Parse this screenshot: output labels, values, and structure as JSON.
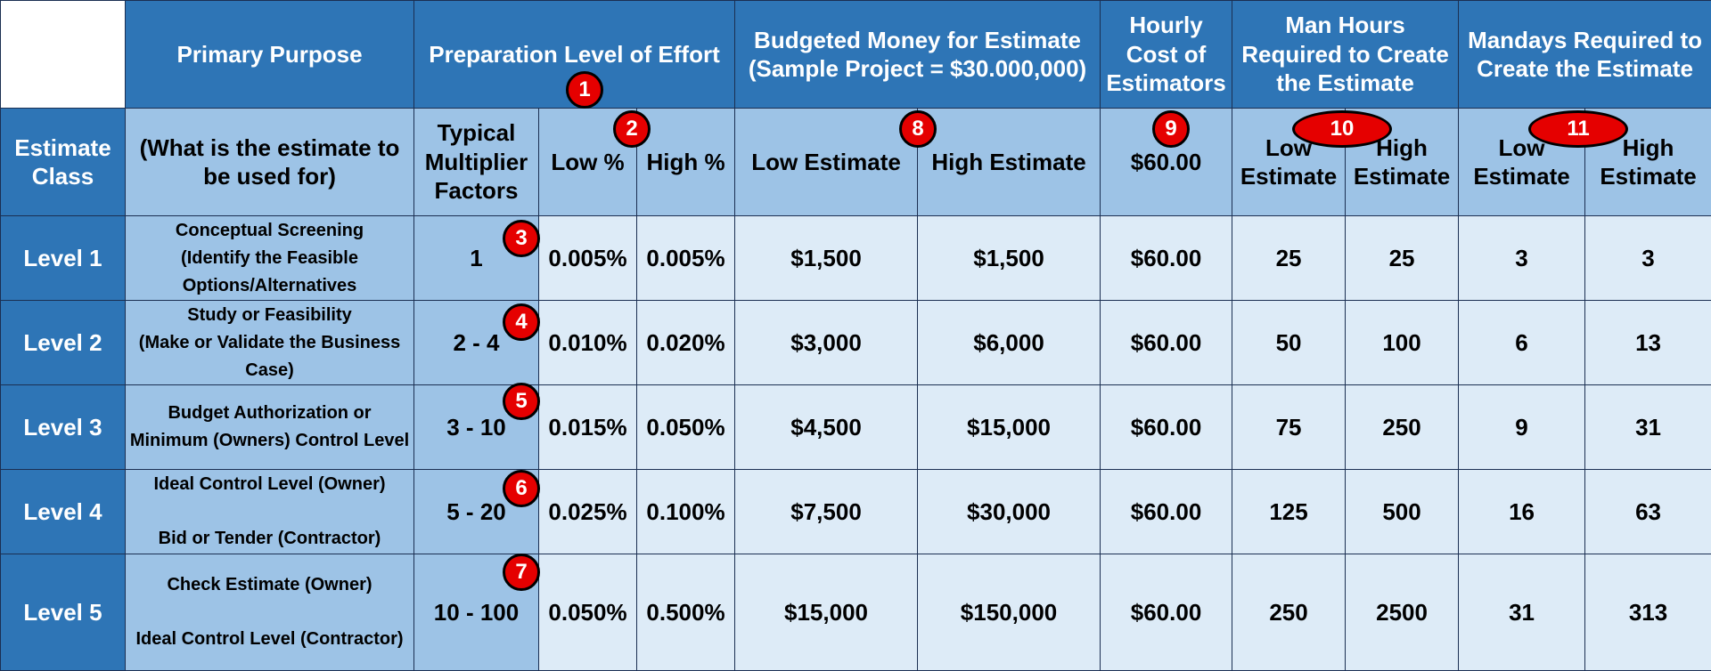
{
  "headers": {
    "primary_purpose": "Primary Purpose",
    "preparation_level": "Preparation Level of Effort",
    "budgeted_money_line1": "Budgeted Money for Estimate",
    "budgeted_money_line2": "(Sample Project = $30.000,000)",
    "hourly_cost": "Hourly Cost of Estimators",
    "man_hours": "Man Hours Required to Create the Estimate",
    "mandays": "Mandays Required to Create the Estimate",
    "estimate_class": "Estimate Class",
    "purpose_sub": "(What is the estimate to be used for)",
    "typical_multiplier": "Typical Multiplier Factors",
    "low_pct": "Low %",
    "high_pct": "High %",
    "low_estimate": "Low Estimate",
    "high_estimate": "High Estimate",
    "hourly_rate": "$60.00",
    "mh_low": "Low Estimate",
    "mh_high": "High Estimate",
    "md_low": "Low Estimate",
    "md_high": "High Estimate"
  },
  "rows": [
    {
      "class": "Level 1",
      "purpose_a": "Conceptual Screening",
      "purpose_b": "(Identify the Feasible Options/Alternatives",
      "multiplier": "1",
      "low_pct": "0.005%",
      "high_pct": "0.005%",
      "low_est": "$1,500",
      "high_est": "$1,500",
      "hourly": "$60.00",
      "mh_low": "25",
      "mh_high": "25",
      "md_low": "3",
      "md_high": "3"
    },
    {
      "class": "Level 2",
      "purpose_a": "Study or Feasibility",
      "purpose_b": "(Make or Validate the Business Case)",
      "multiplier": "2 - 4",
      "low_pct": "0.010%",
      "high_pct": "0.020%",
      "low_est": "$3,000",
      "high_est": "$6,000",
      "hourly": "$60.00",
      "mh_low": "50",
      "mh_high": "100",
      "md_low": "6",
      "md_high": "13"
    },
    {
      "class": "Level 3",
      "purpose_a": "Budget Authorization or",
      "purpose_b": "Minimum (Owners) Control Level",
      "multiplier": "3 - 10",
      "low_pct": "0.015%",
      "high_pct": "0.050%",
      "low_est": "$4,500",
      "high_est": "$15,000",
      "hourly": "$60.00",
      "mh_low": "75",
      "mh_high": "250",
      "md_low": "9",
      "md_high": "31"
    },
    {
      "class": "Level 4",
      "purpose_a": "Ideal Control Level (Owner)",
      "purpose_b": "Bid or Tender (Contractor)",
      "multiplier": "5 - 20",
      "low_pct": "0.025%",
      "high_pct": "0.100%",
      "low_est": "$7,500",
      "high_est": "$30,000",
      "hourly": "$60.00",
      "mh_low": "125",
      "mh_high": "500",
      "md_low": "16",
      "md_high": "63"
    },
    {
      "class": "Level 5",
      "purpose_a": "Check Estimate (Owner)",
      "purpose_b": "Ideal Control Level (Contractor)",
      "multiplier": "10 - 100",
      "low_pct": "0.050%",
      "high_pct": "0.500%",
      "low_est": "$15,000",
      "high_est": "$150,000",
      "hourly": "$60.00",
      "mh_low": "250",
      "mh_high": "2500",
      "md_low": "31",
      "md_high": "313"
    }
  ],
  "badges": [
    "1",
    "2",
    "3",
    "4",
    "5",
    "6",
    "7",
    "8",
    "9",
    "10",
    "11"
  ]
}
